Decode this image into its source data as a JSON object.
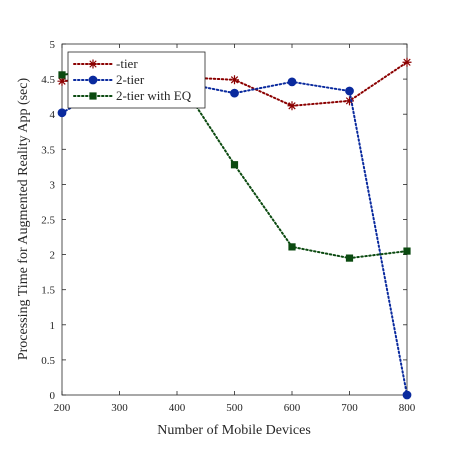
{
  "chart_data": {
    "type": "line",
    "title": "",
    "xlabel": "Number of Mobile Devices",
    "ylabel": "Processing Time for Augmented Reality App (sec)",
    "xlim": [
      200,
      800
    ],
    "ylim": [
      0,
      5
    ],
    "xticks": [
      200,
      300,
      400,
      500,
      600,
      700,
      800
    ],
    "yticks": [
      0,
      0.5,
      1,
      1.5,
      2,
      2.5,
      3,
      3.5,
      4,
      4.5,
      5
    ],
    "xtick_labels": [
      "200",
      "300",
      "400",
      "500",
      "600",
      "700",
      "800"
    ],
    "ytick_labels": [
      "0",
      "0.5",
      "1",
      "1.5",
      "2",
      "2.5",
      "3",
      "3.5",
      "4",
      "4.5",
      "5"
    ],
    "grid": false,
    "legend_position": "top-left",
    "x": [
      200,
      300,
      400,
      500,
      600,
      700,
      800
    ],
    "series": [
      {
        "name": "-tier",
        "marker": "asterisk",
        "color": "#8B0000",
        "values": [
          4.47,
          4.53,
          4.53,
          4.49,
          4.12,
          4.19,
          4.74
        ]
      },
      {
        "name": "2-tier",
        "marker": "circle",
        "color": "#0A2A9E",
        "values": [
          4.02,
          4.48,
          4.46,
          4.3,
          4.46,
          4.33,
          0.0
        ]
      },
      {
        "name": "2-tier with EQ",
        "marker": "square",
        "color": "#0B4A10",
        "values": [
          4.56,
          4.67,
          4.53,
          3.28,
          2.11,
          1.95,
          2.05
        ]
      }
    ]
  }
}
